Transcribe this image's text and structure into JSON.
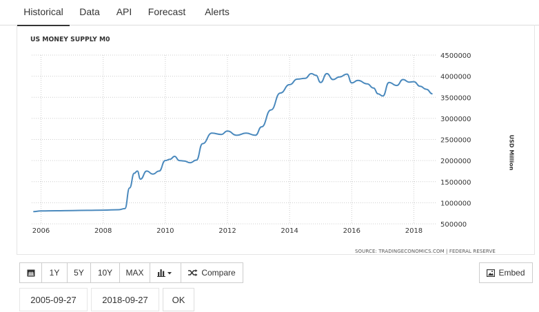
{
  "tabs": [
    {
      "label": "Historical"
    },
    {
      "label": "Data"
    },
    {
      "label": "API"
    },
    {
      "label": "Forecast"
    },
    {
      "label": "Alerts"
    }
  ],
  "chart_title": "US MONEY SUPPLY M0",
  "source": "SOURCE: TRADINGECONOMICS.COM | FEDERAL RESERVE",
  "colors": {
    "line": "#4a89bd",
    "grid": "#cccccc",
    "accent": "#333333"
  },
  "toolbar": {
    "calendar_icon": "calendar-icon",
    "range_1y": "1Y",
    "range_5y": "5Y",
    "range_10y": "10Y",
    "range_max": "MAX",
    "chart_type_icon": "bar-chart-icon",
    "compare_icon": "shuffle-icon",
    "compare_label": "Compare",
    "embed_icon": "image-icon",
    "embed_label": "Embed"
  },
  "date_range": {
    "start": "2005-09-27",
    "end": "2018-09-27",
    "ok_label": "OK"
  },
  "chart_data": {
    "type": "line",
    "title": "US MONEY SUPPLY M0",
    "ylabel": "USD Million",
    "xlabel": "",
    "xlim": [
      2005.7,
      2018.7
    ],
    "ylim": [
      500000,
      4500000
    ],
    "x_ticks": [
      "2006",
      "2008",
      "2010",
      "2012",
      "2014",
      "2016",
      "2018"
    ],
    "y_ticks": [
      "4500000",
      "4000000",
      "3500000",
      "3000000",
      "2500000",
      "2000000",
      "1500000",
      "1000000",
      "500000"
    ],
    "grid": true,
    "series": [
      {
        "x": [
          2005.75,
          2006.0,
          2006.5,
          2007.0,
          2007.5,
          2008.0,
          2008.5,
          2008.7,
          2008.85,
          2009.0,
          2009.1,
          2009.2,
          2009.4,
          2009.6,
          2009.8,
          2010.0,
          2010.15,
          2010.3,
          2010.45,
          2010.6,
          2010.8,
          2011.0,
          2011.2,
          2011.5,
          2011.8,
          2012.0,
          2012.3,
          2012.6,
          2012.9,
          2013.1,
          2013.4,
          2013.7,
          2014.0,
          2014.25,
          2014.5,
          2014.7,
          2014.85,
          2015.0,
          2015.2,
          2015.4,
          2015.6,
          2015.85,
          2016.0,
          2016.2,
          2016.5,
          2016.7,
          2016.85,
          2017.0,
          2017.2,
          2017.45,
          2017.65,
          2017.85,
          2018.0,
          2018.2,
          2018.4,
          2018.6
        ],
        "y": [
          790000,
          805000,
          810000,
          815000,
          820000,
          825000,
          835000,
          860000,
          1350000,
          1700000,
          1750000,
          1560000,
          1750000,
          1680000,
          1750000,
          2000000,
          2030000,
          2100000,
          2000000,
          1990000,
          1950000,
          2010000,
          2400000,
          2650000,
          2620000,
          2700000,
          2600000,
          2650000,
          2600000,
          2800000,
          3200000,
          3600000,
          3800000,
          3930000,
          3950000,
          4060000,
          4020000,
          3850000,
          4060000,
          3920000,
          3980000,
          4050000,
          3840000,
          3900000,
          3820000,
          3720000,
          3580000,
          3530000,
          3850000,
          3780000,
          3920000,
          3860000,
          3870000,
          3760000,
          3690000,
          3580000
        ]
      }
    ]
  }
}
